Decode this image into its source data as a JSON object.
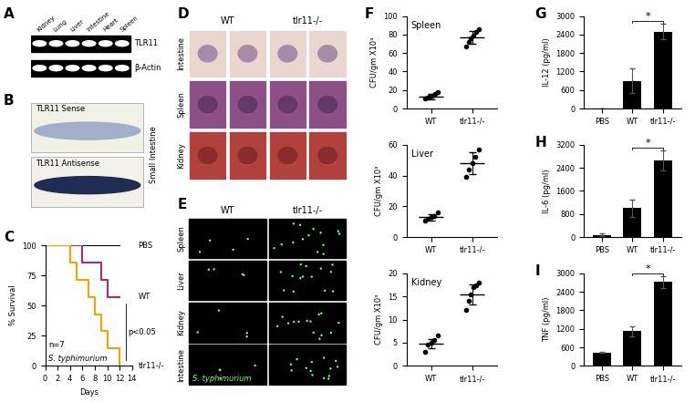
{
  "panel_labels": [
    "A",
    "B",
    "C",
    "D",
    "E",
    "F",
    "G",
    "H",
    "I"
  ],
  "gel": {
    "lanes": [
      "Kidney",
      "Lung",
      "Liver",
      "Intestine",
      "Heart",
      "Spleen"
    ],
    "rows": [
      "TLR11",
      "β-Actin"
    ]
  },
  "in_situ": {
    "rows": [
      "TLR11 Sense",
      "TLR11 Antisense"
    ],
    "tissue": "Small Intestine"
  },
  "histology": {
    "columns": [
      "WT",
      "tlr11-/-"
    ],
    "rows": [
      "Intestine",
      "Spleen",
      "Kidney"
    ]
  },
  "fluorescence": {
    "columns": [
      "WT",
      "tlr11-/-"
    ],
    "rows": [
      "Spleen",
      "Liver",
      "Kidney",
      "Intestine"
    ],
    "annotation": "S. typhimurium"
  },
  "chart_data": [
    {
      "type": "line",
      "xlabel": "Days",
      "ylabel": "% Survival",
      "xlim": [
        0,
        14
      ],
      "xticks": [
        0,
        2,
        4,
        6,
        8,
        10,
        12,
        14
      ],
      "ylim": [
        0,
        100
      ],
      "yticks": [
        0,
        25,
        50,
        75,
        100
      ],
      "line_style": "steps",
      "annotations": [
        "n=7",
        "S. typhimurium",
        "p<0.05"
      ],
      "series": [
        {
          "name": "PBS",
          "color": "#000000",
          "x": [
            0,
            12
          ],
          "values": [
            100,
            100
          ]
        },
        {
          "name": "WT",
          "color": "#a0306a",
          "x": [
            0,
            6,
            9,
            10,
            12
          ],
          "values": [
            100,
            85.7,
            71.4,
            57.1,
            57.1
          ]
        },
        {
          "name": "tlr11-/-",
          "color": "#f5a300",
          "x": [
            0,
            4,
            5,
            7,
            8,
            9,
            10,
            12
          ],
          "values": [
            100,
            85.7,
            71.4,
            57.1,
            42.9,
            28.6,
            14.3,
            0
          ]
        }
      ]
    },
    {
      "type": "scatter",
      "title": "Spleen",
      "ylabel": "CFU/gm X10³",
      "categories": [
        "WT",
        "tlr11-/-"
      ],
      "ylim": [
        0,
        100
      ],
      "yticks": [
        0,
        20,
        40,
        60,
        80,
        100
      ],
      "color": "#000000",
      "points": [
        [
          11,
          12,
          13,
          14,
          16,
          18
        ],
        [
          67,
          72,
          76,
          79,
          83,
          86
        ]
      ],
      "means": [
        13,
        77
      ],
      "errors": [
        3,
        7
      ]
    },
    {
      "type": "scatter",
      "title": "Liver",
      "ylabel": "CFU/gm X10³",
      "categories": [
        "WT",
        "tlr11-/-"
      ],
      "ylim": [
        0,
        60
      ],
      "yticks": [
        0,
        20,
        40,
        60
      ],
      "color": "#000000",
      "points": [
        [
          11,
          12,
          13,
          14,
          16
        ],
        [
          39,
          44,
          48,
          52,
          57
        ]
      ],
      "means": [
        13,
        48
      ],
      "errors": [
        2,
        7
      ]
    },
    {
      "type": "scatter",
      "title": "Kidney",
      "ylabel": "CFU/gm X10³",
      "categories": [
        "WT",
        "tlr11-/-"
      ],
      "ylim": [
        0,
        20
      ],
      "yticks": [
        0,
        5,
        10,
        15,
        20
      ],
      "color": "#000000",
      "points": [
        [
          3,
          4.5,
          5,
          5.5,
          6.5
        ],
        [
          12,
          14,
          15.5,
          17,
          17.5,
          18
        ]
      ],
      "means": [
        4.8,
        15.5
      ],
      "errors": [
        1,
        2.2
      ]
    },
    {
      "type": "bar",
      "ylabel": "IL-12 (pg/ml)",
      "categories": [
        "PBS",
        "WT",
        "tlr11-/-"
      ],
      "values": [
        0,
        900,
        2500
      ],
      "errors": [
        0,
        400,
        250
      ],
      "color": "#000000",
      "ylim": [
        0,
        3000
      ],
      "yticks": [
        0,
        600,
        1200,
        1800,
        2400,
        3000
      ],
      "annotations": [
        "*"
      ],
      "comparison": [
        "WT",
        "tlr11-/-"
      ]
    },
    {
      "type": "bar",
      "ylabel": "IL-6 (pg/ml)",
      "categories": [
        "PBS",
        "WT",
        "tlr11-/-"
      ],
      "values": [
        80,
        1000,
        2650
      ],
      "errors": [
        40,
        300,
        350
      ],
      "color": "#000000",
      "ylim": [
        0,
        3200
      ],
      "yticks": [
        0,
        800,
        1600,
        2400,
        3200
      ],
      "annotations": [
        "*"
      ],
      "comparison": [
        "WT",
        "tlr11-/-"
      ]
    },
    {
      "type": "bar",
      "ylabel": "TNF (pg/ml)",
      "categories": [
        "PBS",
        "WT",
        "tlr11-/-"
      ],
      "values": [
        430,
        1120,
        2720
      ],
      "errors": [
        20,
        150,
        200
      ],
      "color": "#000000",
      "ylim": [
        0,
        3000
      ],
      "yticks": [
        0,
        600,
        1200,
        1800,
        2400,
        3000
      ],
      "annotations": [
        "*"
      ],
      "comparison": [
        "WT",
        "tlr11-/-"
      ]
    }
  ]
}
